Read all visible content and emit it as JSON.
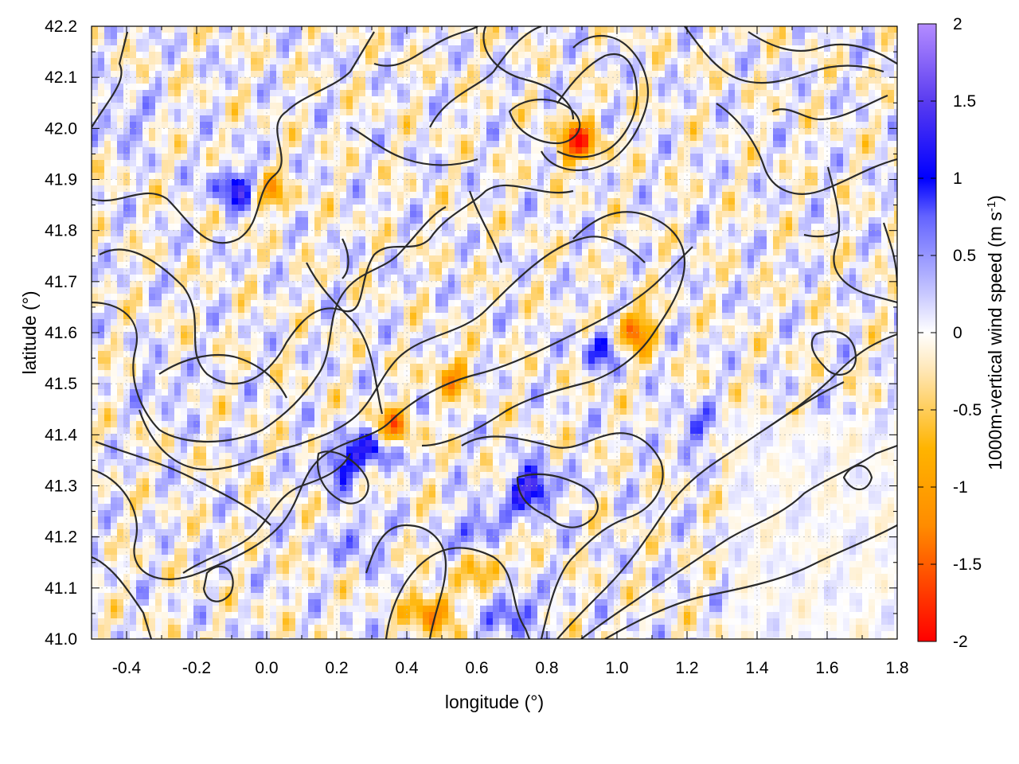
{
  "chart_data": {
    "type": "heatmap",
    "title": "",
    "xlabel": "longitude (°)",
    "ylabel": "latitude (°)",
    "xlim": [
      -0.5,
      1.8
    ],
    "ylim": [
      41.0,
      42.2
    ],
    "x_ticks": [
      "-0.4",
      "-0.2",
      "0.0",
      "0.2",
      "0.4",
      "0.6",
      "0.8",
      "1.0",
      "1.2",
      "1.4",
      "1.6",
      "1.8"
    ],
    "x_tick_values": [
      -0.4,
      -0.2,
      0.0,
      0.2,
      0.4,
      0.6,
      0.8,
      1.0,
      1.2,
      1.4,
      1.6,
      1.8
    ],
    "y_ticks": [
      "41.0",
      "41.1",
      "41.2",
      "41.3",
      "41.4",
      "41.5",
      "41.6",
      "41.7",
      "41.8",
      "41.9",
      "42.0",
      "42.1",
      "42.2"
    ],
    "y_tick_values": [
      41.0,
      41.1,
      41.2,
      41.3,
      41.4,
      41.5,
      41.6,
      41.7,
      41.8,
      41.9,
      42.0,
      42.1,
      42.2
    ],
    "grid": true,
    "colorbar": {
      "label_main": "1000m-vertical wind speed (m s",
      "label_sup": "-1",
      "label_end": ")",
      "range": [
        -2,
        2
      ],
      "ticks": [
        "2",
        "1.5",
        "1",
        "0.5",
        "0",
        "-0.5",
        "-1",
        "-1.5",
        "-2"
      ],
      "tick_values": [
        2,
        1.5,
        1,
        0.5,
        0,
        -0.5,
        -1,
        -1.5,
        -2
      ],
      "colors": [
        {
          "v": -2,
          "c": "#ff0000"
        },
        {
          "v": -1.25,
          "c": "#ff8c00"
        },
        {
          "v": -0.75,
          "c": "#ffb400"
        },
        {
          "v": -0.25,
          "c": "#ffe6b4"
        },
        {
          "v": 0,
          "c": "#ffffff"
        },
        {
          "v": 0.25,
          "c": "#c8c8ff"
        },
        {
          "v": 0.75,
          "c": "#6464ff"
        },
        {
          "v": 1,
          "c": "#0000ff"
        },
        {
          "v": 1.5,
          "c": "#5a3cf0"
        },
        {
          "v": 2,
          "c": "#b48cff"
        }
      ]
    },
    "contour_color": "#2a2a2a",
    "hotspots": [
      {
        "lon": 0.75,
        "lat": 41.3,
        "w": 1.6
      },
      {
        "lon": 0.88,
        "lat": 41.98,
        "w": -1.6
      },
      {
        "lon": 1.04,
        "lat": 41.61,
        "w": -1.4
      },
      {
        "lon": 0.46,
        "lat": 41.06,
        "w": -1.3
      },
      {
        "lon": 0.35,
        "lat": 41.42,
        "w": -1.2
      },
      {
        "lon": 0.3,
        "lat": 41.38,
        "w": 1.1
      },
      {
        "lon": -0.1,
        "lat": 41.89,
        "w": 1.2
      },
      {
        "lon": 0.2,
        "lat": 41.35,
        "w": 1.0
      },
      {
        "lon": 0.6,
        "lat": 41.22,
        "w": 1.0
      },
      {
        "lon": 0.7,
        "lat": 41.06,
        "w": 1.0
      },
      {
        "lon": 0.52,
        "lat": 41.52,
        "w": -0.9
      },
      {
        "lon": 0.95,
        "lat": 41.58,
        "w": 0.9
      },
      {
        "lon": -0.42,
        "lat": 42.02,
        "w": 0.6
      },
      {
        "lon": 0.0,
        "lat": 41.88,
        "w": -0.8
      },
      {
        "lon": 0.62,
        "lat": 41.15,
        "w": -0.9
      },
      {
        "lon": 1.2,
        "lat": 41.42,
        "w": 0.7
      },
      {
        "lon": 0.25,
        "lat": 41.2,
        "w": 0.7
      },
      {
        "lon": -0.3,
        "lat": 41.5,
        "w": 0.5
      }
    ]
  }
}
